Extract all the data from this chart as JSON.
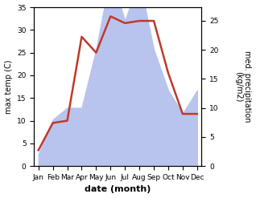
{
  "months": [
    "Jan",
    "Feb",
    "Mar",
    "Apr",
    "May",
    "Jun",
    "Jul",
    "Aug",
    "Sep",
    "Oct",
    "Nov",
    "Dec"
  ],
  "temperature": [
    3.5,
    9.5,
    10.0,
    28.5,
    25.0,
    33.0,
    31.5,
    32.0,
    32.0,
    20.5,
    11.5,
    11.5
  ],
  "precipitation": [
    2.0,
    8.0,
    10.0,
    10.0,
    20.0,
    33.0,
    25.0,
    32.0,
    20.0,
    13.0,
    9.0,
    13.0
  ],
  "temp_color": "#c0392b",
  "precip_fill_color": "#b8c4ee",
  "ylabel_left": "max temp (C)",
  "ylabel_right": "med. precipitation\n(kg/m2)",
  "xlabel": "date (month)",
  "ylim_temp": [
    0,
    35
  ],
  "ylim_precip": [
    0,
    27.3
  ],
  "yticks_temp": [
    0,
    5,
    10,
    15,
    20,
    25,
    30,
    35
  ],
  "yticks_precip": [
    0,
    5,
    10,
    15,
    20,
    25
  ],
  "label_fontsize": 7,
  "tick_fontsize": 6.5,
  "xlabel_fontsize": 8
}
